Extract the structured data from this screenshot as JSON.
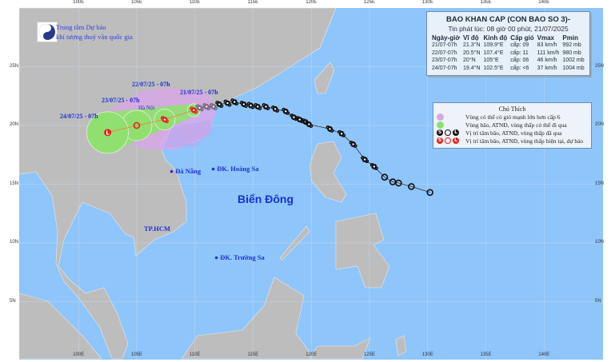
{
  "header": {
    "title": "BAO KHAN CAP (CON BAO SO 3)-",
    "issued": "Tin phát lúc: 08 giờ 00 phút, 21/07/2025"
  },
  "forecast_table": {
    "columns": [
      "Ngày-giờ",
      "Vĩ độ",
      "Kinh độ",
      "Cấp gió",
      "Vmax",
      "Pmin"
    ],
    "rows": [
      [
        "21/07-07h",
        "21.3°N",
        "109.9°E",
        "cấp: 09",
        "83 km/h",
        "992 mb"
      ],
      [
        "22/07-07h",
        "20.5°N",
        "107.4°E",
        "cấp: 11",
        "111 km/h",
        "980 mb"
      ],
      [
        "23/07-07h",
        "20°N",
        "105°E",
        "cấp: 06",
        "46 km/h",
        "1002 mb"
      ],
      [
        "24/07-07h",
        "19.4°N",
        "102.5°E",
        "cấp: <6",
        "37 km/h",
        "1004 mb"
      ]
    ]
  },
  "legend": {
    "title": "Chú Thích",
    "items": [
      {
        "label": "Vùng có thể có gió mạnh lớn hơn cấp 6",
        "color": "#d8a8e8"
      },
      {
        "label": "Vùng bão, ATNĐ, vùng thấp có thể đi qua",
        "color": "#90e070"
      },
      {
        "label": "Vị trí tâm bão, ATNĐ, vùng thấp đã qua",
        "color": "#111111"
      },
      {
        "label": "Vị trí tâm bão, ATNĐ, vùng thấp hiện tại, dự báo",
        "color": "#e8201a"
      }
    ]
  },
  "logo": {
    "line1": "Trung tâm Dự báo",
    "line2": "khí tượng thuỷ văn quốc gia",
    "mark": "NCHMF"
  },
  "forecast_points": [
    {
      "label": "21/07/25 - 07h",
      "lat": 21.3,
      "lon": 109.9,
      "kind": "typhoon"
    },
    {
      "label": "22/07/25 - 07h",
      "lat": 20.5,
      "lon": 107.4,
      "kind": "typhoon"
    },
    {
      "label": "23/07/25 - 07h",
      "lat": 20.0,
      "lon": 105.0,
      "kind": "depression"
    },
    {
      "label": "24/07/25 - 07h",
      "lat": 19.4,
      "lon": 102.5,
      "kind": "low"
    }
  ],
  "past_track": [
    {
      "lon": 110.4,
      "lat": 21.5,
      "kind": "storm-recent"
    },
    {
      "lon": 111.0,
      "lat": 21.6,
      "kind": "storm-recent"
    },
    {
      "lon": 111.6,
      "lat": 21.6,
      "kind": "storm-recent"
    },
    {
      "lon": 112.1,
      "lat": 21.8,
      "kind": "storm"
    },
    {
      "lon": 112.8,
      "lat": 21.9,
      "kind": "storm"
    },
    {
      "lon": 113.4,
      "lat": 22.0,
      "kind": "storm"
    },
    {
      "lon": 114.2,
      "lat": 21.8,
      "kind": "storm"
    },
    {
      "lon": 114.8,
      "lat": 21.7,
      "kind": "storm"
    },
    {
      "lon": 115.4,
      "lat": 21.6,
      "kind": "storm"
    },
    {
      "lon": 116.1,
      "lat": 21.6,
      "kind": "storm"
    },
    {
      "lon": 116.9,
      "lat": 21.4,
      "kind": "storm"
    },
    {
      "lon": 117.8,
      "lat": 21.2,
      "kind": "storm"
    },
    {
      "lon": 118.5,
      "lat": 20.7,
      "kind": "storm"
    },
    {
      "lon": 119.0,
      "lat": 20.5,
      "kind": "storm"
    },
    {
      "lon": 119.5,
      "lat": 20.3,
      "kind": "storm"
    },
    {
      "lon": 119.8,
      "lat": 20.1,
      "kind": "storm"
    },
    {
      "lon": 121.6,
      "lat": 19.7,
      "kind": "storm"
    },
    {
      "lon": 122.6,
      "lat": 19.3,
      "kind": "storm"
    },
    {
      "lon": 123.6,
      "lat": 18.4,
      "kind": "storm"
    },
    {
      "lon": 124.6,
      "lat": 17.1,
      "kind": "storm"
    },
    {
      "lon": 125.4,
      "lat": 16.5,
      "kind": "storm"
    },
    {
      "lon": 126.3,
      "lat": 15.6,
      "kind": "depression"
    },
    {
      "lon": 127.0,
      "lat": 15.2,
      "kind": "depression"
    },
    {
      "lon": 127.5,
      "lat": 15.1,
      "kind": "depression"
    },
    {
      "lon": 128.6,
      "lat": 14.8,
      "kind": "depression"
    },
    {
      "lon": 130.2,
      "lat": 14.3,
      "kind": "depression"
    }
  ],
  "places": {
    "hanoi": "Hà Nội",
    "danang": "Đà Nẵng",
    "hoangsa": "ĐK. Hoàng Sa",
    "hcm": "TP.HCM",
    "truongsa": "ĐK. Trường Sa",
    "sea": "Biển Đông"
  },
  "axes": {
    "lon_labels": [
      "100E",
      "105E",
      "110E",
      "115E",
      "120E",
      "125E",
      "130E",
      "135E",
      "140E"
    ],
    "lat_labels": [
      "25N",
      "20N",
      "15N",
      "10N",
      "5N"
    ]
  },
  "colors": {
    "ocean": "#8ec5fb",
    "land": "#bdbdbd",
    "wind_zone": "#d8a8e8",
    "cone": "#90e070",
    "current": "#e8201a",
    "past": "#111111"
  }
}
